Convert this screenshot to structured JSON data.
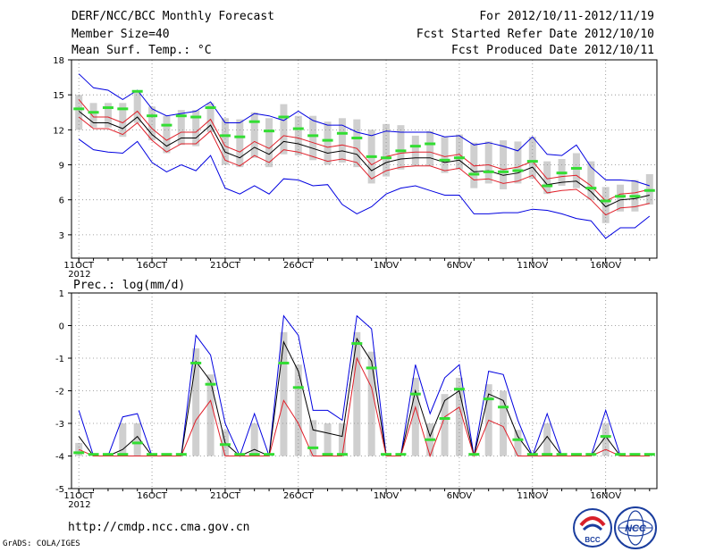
{
  "header": {
    "title": "DERF/NCC/BCC Monthly Forecast",
    "member": "Member Size=40",
    "variable": "Mean Surf. Temp.: °C",
    "period": "For 2012/10/11-2012/11/19",
    "started": "Fcst Started Refer Date 2012/10/10",
    "produced": "Fcst Produced Date 2012/10/11"
  },
  "footer": {
    "url": "http://cmdp.ncc.cma.gov.cn",
    "credit": "GrADS: COLA/IGES",
    "logo_left_text": "BCC",
    "logo_right_text": "NCC"
  },
  "colors": {
    "mean": "#000000",
    "spread": "#e0202a",
    "range": "#0000e0",
    "ensemble_mean_marker": "#33dd33",
    "box": "#cfcfcf",
    "grid": "#888888"
  },
  "chart_data": [
    {
      "type": "line",
      "title": "Mean Surf. Temp.: °C",
      "x_labels": [
        {
          "day": 1,
          "label": "11OCT"
        },
        {
          "day": 6,
          "label": "16OCT"
        },
        {
          "day": 11,
          "label": "21OCT"
        },
        {
          "day": 16,
          "label": "26OCT"
        },
        {
          "day": 22,
          "label": "1NOV"
        },
        {
          "day": 27,
          "label": "6NOV"
        },
        {
          "day": 32,
          "label": "11NOV"
        },
        {
          "day": 37,
          "label": "16NOV"
        }
      ],
      "year_label": "2012",
      "ylim": [
        1,
        18
      ],
      "yticks": [
        3,
        6,
        9,
        12,
        15,
        18
      ],
      "x": [
        1,
        2,
        3,
        4,
        5,
        6,
        7,
        8,
        9,
        10,
        11,
        12,
        13,
        14,
        15,
        16,
        17,
        18,
        19,
        20,
        21,
        22,
        23,
        24,
        25,
        26,
        27,
        28,
        29,
        30,
        31,
        32,
        33,
        34,
        35,
        36,
        37,
        38,
        39,
        40
      ],
      "series": [
        {
          "name": "max",
          "color": "blue",
          "values": [
            16.8,
            15.6,
            15.4,
            14.6,
            15.4,
            13.8,
            13.2,
            13.4,
            13.6,
            14.4,
            12.6,
            12.6,
            13.4,
            13.2,
            12.8,
            13.6,
            12.8,
            12.4,
            12.4,
            11.8,
            11.5,
            11.9,
            11.8,
            11.8,
            11.8,
            11.4,
            11.5,
            10.7,
            10.9,
            10.6,
            10.2,
            11.4,
            9.9,
            9.8,
            10.7,
            8.8,
            7.7,
            7.7,
            7.6,
            7.2
          ]
        },
        {
          "name": "upper",
          "color": "red",
          "values": [
            14.6,
            13.1,
            13.1,
            12.6,
            13.6,
            12.1,
            11.1,
            11.8,
            11.8,
            12.9,
            10.6,
            10.1,
            11.0,
            10.4,
            11.5,
            11.3,
            10.9,
            10.5,
            10.7,
            10.4,
            9.0,
            9.7,
            10.0,
            10.1,
            10.1,
            9.7,
            9.9,
            8.9,
            9.0,
            8.6,
            8.8,
            9.3,
            7.8,
            8.0,
            8.1,
            7.2,
            5.9,
            6.5,
            6.6,
            6.9
          ]
        },
        {
          "name": "mean",
          "color": "black",
          "values": [
            13.6,
            12.6,
            12.6,
            12.1,
            13.1,
            11.6,
            10.6,
            11.3,
            11.3,
            12.4,
            10.1,
            9.6,
            10.5,
            9.9,
            11.0,
            10.8,
            10.4,
            10.0,
            10.2,
            9.9,
            8.5,
            9.2,
            9.5,
            9.6,
            9.6,
            9.2,
            9.4,
            8.4,
            8.5,
            8.1,
            8.3,
            8.8,
            7.3,
            7.5,
            7.6,
            6.7,
            5.4,
            6.0,
            6.1,
            6.4
          ]
        },
        {
          "name": "lower",
          "color": "red",
          "values": [
            13.1,
            12.1,
            12.1,
            11.6,
            12.6,
            11.1,
            10.1,
            10.8,
            10.8,
            11.9,
            9.4,
            8.9,
            9.8,
            9.2,
            10.3,
            10.1,
            9.7,
            9.3,
            9.5,
            9.2,
            7.8,
            8.5,
            8.8,
            8.9,
            8.9,
            8.5,
            8.7,
            7.7,
            7.8,
            7.4,
            7.6,
            8.1,
            6.6,
            6.8,
            6.9,
            6.0,
            4.7,
            5.3,
            5.4,
            5.7
          ]
        },
        {
          "name": "min",
          "color": "blue",
          "values": [
            11.2,
            10.3,
            10.1,
            10.0,
            11.0,
            9.2,
            8.4,
            9.0,
            8.5,
            9.8,
            7.0,
            6.5,
            7.2,
            6.5,
            7.8,
            7.7,
            7.2,
            7.3,
            5.6,
            4.8,
            5.4,
            6.5,
            7.0,
            7.2,
            6.8,
            6.4,
            6.4,
            4.8,
            4.8,
            4.9,
            4.9,
            5.2,
            5.1,
            4.8,
            4.4,
            4.2,
            2.7,
            3.6,
            3.6,
            4.6
          ]
        },
        {
          "name": "ensemble mean marker",
          "color": "green",
          "values": [
            13.8,
            13.5,
            13.9,
            13.8,
            15.3,
            13.2,
            12.4,
            13.2,
            13.1,
            13.9,
            11.5,
            11.4,
            12.7,
            11.9,
            13.1,
            12.1,
            11.5,
            11.1,
            11.7,
            11.3,
            9.7,
            9.6,
            10.2,
            10.6,
            10.8,
            9.4,
            9.6,
            8.2,
            8.4,
            8.4,
            8.5,
            9.3,
            7.2,
            8.3,
            8.7,
            7.0,
            5.9,
            6.3,
            6.3,
            6.8
          ]
        }
      ],
      "boxes": [
        [
          12.0,
          15.0
        ],
        [
          12.2,
          14.3
        ],
        [
          12.2,
          14.3
        ],
        [
          11.4,
          14.3
        ],
        [
          12.6,
          15.3
        ],
        [
          11.1,
          14.0
        ],
        [
          10.0,
          13.2
        ],
        [
          10.7,
          13.7
        ],
        [
          10.6,
          13.7
        ],
        [
          11.8,
          14.3
        ],
        [
          9.0,
          13.0
        ],
        [
          8.8,
          12.9
        ],
        [
          9.6,
          13.5
        ],
        [
          8.8,
          13.0
        ],
        [
          9.9,
          14.2
        ],
        [
          9.8,
          13.2
        ],
        [
          9.4,
          13.2
        ],
        [
          9.0,
          12.7
        ],
        [
          9.2,
          13.0
        ],
        [
          8.8,
          12.9
        ],
        [
          7.4,
          12.0
        ],
        [
          8.0,
          12.5
        ],
        [
          8.6,
          12.4
        ],
        [
          8.9,
          11.5
        ],
        [
          8.9,
          11.9
        ],
        [
          8.3,
          11.4
        ],
        [
          8.6,
          11.6
        ],
        [
          7.0,
          10.9
        ],
        [
          7.4,
          11.0
        ],
        [
          6.9,
          11.1
        ],
        [
          7.4,
          11.0
        ],
        [
          7.8,
          11.4
        ],
        [
          6.5,
          9.3
        ],
        [
          7.2,
          9.5
        ],
        [
          7.0,
          10.0
        ],
        [
          6.0,
          9.3
        ],
        [
          4.0,
          7.1
        ],
        [
          5.0,
          7.3
        ],
        [
          5.0,
          7.7
        ],
        [
          5.6,
          8.2
        ]
      ]
    },
    {
      "type": "line",
      "title": "Prec.: log(mm/d)",
      "x_labels": [
        {
          "day": 1,
          "label": "11OCT"
        },
        {
          "day": 6,
          "label": "16OCT"
        },
        {
          "day": 11,
          "label": "21OCT"
        },
        {
          "day": 16,
          "label": "26OCT"
        },
        {
          "day": 22,
          "label": "1NOV"
        },
        {
          "day": 27,
          "label": "6NOV"
        },
        {
          "day": 32,
          "label": "11NOV"
        },
        {
          "day": 37,
          "label": "16NOV"
        }
      ],
      "year_label": "2012",
      "ylim": [
        -5,
        1
      ],
      "yticks": [
        -5,
        -4,
        -3,
        -2,
        -1,
        0,
        1
      ],
      "x": [
        1,
        2,
        3,
        4,
        5,
        6,
        7,
        8,
        9,
        10,
        11,
        12,
        13,
        14,
        15,
        16,
        17,
        18,
        19,
        20,
        21,
        22,
        23,
        24,
        25,
        26,
        27,
        28,
        29,
        30,
        31,
        32,
        33,
        34,
        35,
        36,
        37,
        38,
        39,
        40
      ],
      "series": [
        {
          "name": "max",
          "color": "blue",
          "values": [
            -2.6,
            -4.0,
            -4.0,
            -2.8,
            -2.7,
            -4.0,
            -4.0,
            -4.0,
            -0.3,
            -0.9,
            -3.0,
            -4.0,
            -2.7,
            -4.0,
            0.3,
            -0.3,
            -2.6,
            -2.6,
            -2.9,
            0.3,
            -0.1,
            -4.0,
            -4.0,
            -1.2,
            -2.7,
            -1.6,
            -1.2,
            -4.0,
            -1.4,
            -1.5,
            -2.9,
            -4.0,
            -2.7,
            -4.0,
            -4.0,
            -4.0,
            -2.6,
            -4.0,
            -4.0,
            -4.0
          ]
        },
        {
          "name": "mean",
          "color": "black",
          "values": [
            -3.4,
            -4.0,
            -4.0,
            -3.8,
            -3.4,
            -4.0,
            -4.0,
            -4.0,
            -1.1,
            -1.7,
            -3.6,
            -4.0,
            -3.8,
            -4.0,
            -0.5,
            -1.4,
            -3.2,
            -3.3,
            -3.4,
            -0.4,
            -1.1,
            -4.0,
            -4.0,
            -2.0,
            -3.4,
            -2.3,
            -2.0,
            -4.0,
            -2.1,
            -2.3,
            -3.4,
            -4.0,
            -3.4,
            -4.0,
            -4.0,
            -4.0,
            -3.4,
            -4.0,
            -4.0,
            -4.0
          ]
        },
        {
          "name": "spread",
          "color": "red",
          "values": [
            -3.8,
            -4.0,
            -4.0,
            -4.0,
            -4.0,
            -4.0,
            -4.0,
            -4.0,
            -2.9,
            -2.3,
            -4.0,
            -4.0,
            -4.0,
            -4.0,
            -2.3,
            -3.0,
            -4.0,
            -4.0,
            -4.0,
            -1.0,
            -1.9,
            -4.0,
            -4.0,
            -2.5,
            -4.0,
            -2.8,
            -2.5,
            -4.0,
            -2.9,
            -3.1,
            -4.0,
            -4.0,
            -4.0,
            -4.0,
            -4.0,
            -4.0,
            -3.8,
            -4.0,
            -4.0,
            -4.0
          ]
        },
        {
          "name": "ensemble mean marker",
          "color": "green",
          "values": [
            -3.9,
            -3.95,
            -3.95,
            -3.95,
            -3.6,
            -3.95,
            -3.95,
            -3.95,
            -1.15,
            -1.8,
            -3.65,
            -3.95,
            -3.95,
            -3.95,
            -1.15,
            -1.9,
            -3.75,
            -3.95,
            -3.95,
            -0.55,
            -1.3,
            -3.95,
            -3.95,
            -2.1,
            -3.5,
            -2.85,
            -1.95,
            -3.95,
            -2.25,
            -2.5,
            -3.5,
            -3.95,
            -3.95,
            -3.95,
            -3.95,
            -3.95,
            -3.4,
            -3.95,
            -3.95,
            -3.95
          ]
        }
      ],
      "boxes": [
        [
          -4.0,
          -3.6
        ],
        [
          -4.0,
          -4.0
        ],
        [
          -4.0,
          -4.0
        ],
        [
          -4.0,
          -3.0
        ],
        [
          -4.0,
          -3.0
        ],
        [
          -4.0,
          -4.0
        ],
        [
          -4.0,
          -4.0
        ],
        [
          -4.0,
          -4.0
        ],
        [
          -4.0,
          -0.7
        ],
        [
          -4.0,
          -1.5
        ],
        [
          -4.0,
          -3.2
        ],
        [
          -4.0,
          -4.0
        ],
        [
          -4.0,
          -3.0
        ],
        [
          -4.0,
          -4.0
        ],
        [
          -4.0,
          -0.2
        ],
        [
          -4.0,
          -1.2
        ],
        [
          -4.0,
          -2.9
        ],
        [
          -4.0,
          -3.0
        ],
        [
          -4.0,
          -3.0
        ],
        [
          -4.0,
          -0.2
        ],
        [
          -4.0,
          -0.8
        ],
        [
          -4.0,
          -4.0
        ],
        [
          -4.0,
          -4.0
        ],
        [
          -4.0,
          -1.6
        ],
        [
          -4.0,
          -3.0
        ],
        [
          -4.0,
          -2.1
        ],
        [
          -4.0,
          -1.6
        ],
        [
          -4.0,
          -4.0
        ],
        [
          -4.0,
          -1.8
        ],
        [
          -4.0,
          -2.0
        ],
        [
          -4.0,
          -3.2
        ],
        [
          -4.0,
          -4.0
        ],
        [
          -4.0,
          -3.0
        ],
        [
          -4.0,
          -4.0
        ],
        [
          -4.0,
          -4.0
        ],
        [
          -4.0,
          -4.0
        ],
        [
          -4.0,
          -3.0
        ],
        [
          -4.0,
          -4.0
        ],
        [
          -4.0,
          -4.0
        ],
        [
          -4.0,
          -4.0
        ]
      ]
    }
  ]
}
